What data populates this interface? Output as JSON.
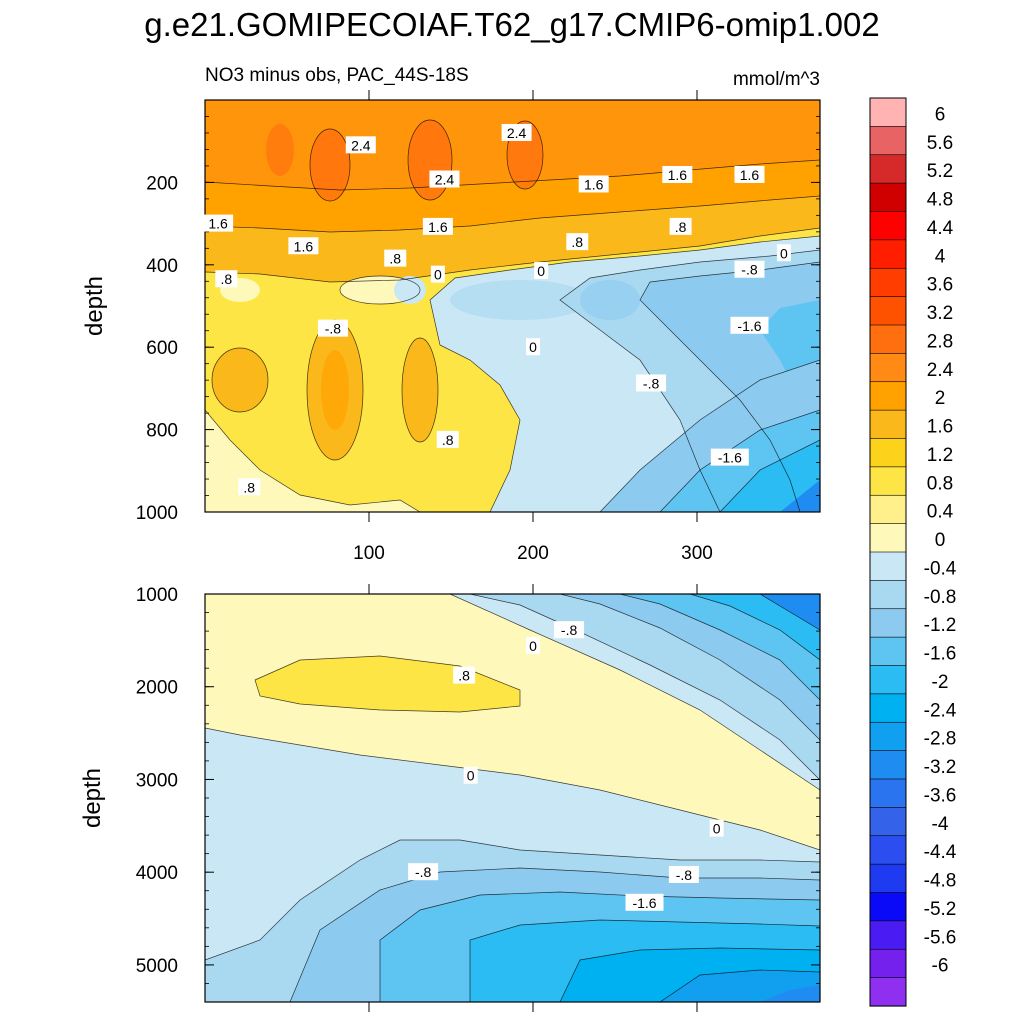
{
  "title": "g.e21.GOMIPECOIAF.T62_g17.CMIP6-omip1.002",
  "chart_data": {
    "type": "heatmap",
    "subtitle": "NO3 minus obs, PAC_44S-18S",
    "units": "mmol/m^3",
    "panels": [
      {
        "name": "upper",
        "ylabel": "depth",
        "ylim": [
          1000,
          0
        ],
        "xlim": [
          0,
          375
        ],
        "yticks": [
          "200",
          "400",
          "600",
          "800",
          "1000"
        ],
        "xticks": [
          "100",
          "200",
          "300"
        ],
        "contour_labels": [
          {
            "text": "2.4",
            "x": 95,
            "y": 110
          },
          {
            "text": "2.4",
            "x": 146,
            "y": 193
          },
          {
            "text": "2.4",
            "x": 190,
            "y": 80
          },
          {
            "text": "1.6",
            "x": 8,
            "y": 300
          },
          {
            "text": "1.6",
            "x": 60,
            "y": 355
          },
          {
            "text": "1.6",
            "x": 142,
            "y": 308
          },
          {
            "text": "1.6",
            "x": 237,
            "y": 205
          },
          {
            "text": "1.6",
            "x": 288,
            "y": 182
          },
          {
            "text": "1.6",
            "x": 332,
            "y": 182
          },
          {
            "text": ".8",
            "x": 13,
            "y": 435
          },
          {
            "text": ".8",
            "x": 116,
            "y": 385
          },
          {
            "text": ".8",
            "x": 227,
            "y": 345
          },
          {
            "text": ".8",
            "x": 290,
            "y": 308
          },
          {
            "text": "0",
            "x": 353,
            "y": 372
          },
          {
            "text": "0",
            "x": 142,
            "y": 424
          },
          {
            "text": "0",
            "x": 205,
            "y": 415
          },
          {
            "text": "-.8",
            "x": 332,
            "y": 412
          },
          {
            "text": "-.8",
            "x": 78,
            "y": 555
          },
          {
            "text": "-1.6",
            "x": 332,
            "y": 548
          },
          {
            "text": "0",
            "x": 200,
            "y": 600
          },
          {
            "text": "-.8",
            "x": 272,
            "y": 688
          },
          {
            "text": ".8",
            "x": 148,
            "y": 825
          },
          {
            "text": "-1.6",
            "x": 320,
            "y": 868
          },
          {
            "text": ".8",
            "x": 27,
            "y": 940
          }
        ]
      },
      {
        "name": "lower",
        "ylabel": "depth",
        "ylim": [
          5400,
          1000
        ],
        "xlim": [
          0,
          375
        ],
        "yticks": [
          "1000",
          "2000",
          "3000",
          "4000",
          "5000"
        ],
        "contour_labels": [
          {
            "text": "-.8",
            "x": 222,
            "y": 1390
          },
          {
            "text": "0",
            "x": 200,
            "y": 1560
          },
          {
            "text": ".8",
            "x": 158,
            "y": 1880
          },
          {
            "text": "0",
            "x": 162,
            "y": 2960
          },
          {
            "text": "0",
            "x": 312,
            "y": 3530
          },
          {
            "text": "-.8",
            "x": 133,
            "y": 4000
          },
          {
            "text": "-.8",
            "x": 292,
            "y": 4030
          },
          {
            "text": "-1.6",
            "x": 268,
            "y": 4330
          }
        ]
      }
    ],
    "colorbar": {
      "labels": [
        "6",
        "5.6",
        "5.2",
        "4.8",
        "4.4",
        "4",
        "3.6",
        "3.2",
        "2.8",
        "2.4",
        "2",
        "1.6",
        "1.2",
        "0.8",
        "0.4",
        "0",
        "-0.4",
        "-0.8",
        "-1.2",
        "-1.6",
        "-2",
        "-2.4",
        "-2.8",
        "-3.2",
        "-3.6",
        "-4",
        "-4.4",
        "-4.8",
        "-5.2",
        "-5.6",
        "-6"
      ],
      "colors": [
        "#ffb3b3",
        "#e86464",
        "#d62a2a",
        "#d10000",
        "#ff0000",
        "#ff1f00",
        "#ff3d00",
        "#ff5200",
        "#ff6e0f",
        "#ff8a14",
        "#ffa200",
        "#fbb81b",
        "#fdd21b",
        "#fde545",
        "#fff08c",
        "#fff8bb",
        "#c9e7f5",
        "#a8d9f1",
        "#8ccaf0",
        "#5ec4f2",
        "#2abcf2",
        "#00b1f2",
        "#119ff0",
        "#1f8cf2",
        "#2b74ef",
        "#3462e8",
        "#2c4ef0",
        "#1f3bf2",
        "#0a0af9",
        "#4a1cf3",
        "#7421ee",
        "#8f2ff0"
      ]
    }
  }
}
